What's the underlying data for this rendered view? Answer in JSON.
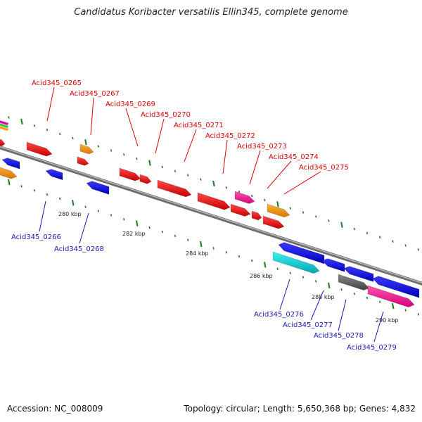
{
  "title": "Candidatus Koribacter versatilis Ellin345, complete genome",
  "footer": {
    "accession": "Accession: NC_008009",
    "summary": "Topology: circular; Length: 5,650,368 bp; Genes: 4,832"
  },
  "colors": {
    "top_label": "#e00000",
    "bottom_label": "#1a1ab4",
    "tick": "#1e7a1e",
    "backbone": "#8c8c8c"
  },
  "scale_labels": [
    {
      "text": "280 kbp",
      "pos": 280
    },
    {
      "text": "282 kbp",
      "pos": 282
    },
    {
      "text": "284 kbp",
      "pos": 284
    },
    {
      "text": "286 kbp",
      "pos": 286
    },
    {
      "text": "288 kbp",
      "pos": 288
    },
    {
      "text": "290 kbp",
      "pos": 290
    }
  ],
  "genes_top": [
    {
      "label": "Acid345_0265"
    },
    {
      "label": "Acid345_0267"
    },
    {
      "label": "Acid345_0269"
    },
    {
      "label": "Acid345_0270"
    },
    {
      "label": "Acid345_0271"
    },
    {
      "label": "Acid345_0272"
    },
    {
      "label": "Acid345_0273"
    },
    {
      "label": "Acid345_0274"
    },
    {
      "label": "Acid345_0275"
    }
  ],
  "genes_bottom": [
    {
      "label": "Acid345_0266"
    },
    {
      "label": "Acid345_0268"
    },
    {
      "label": "Acid345_0276"
    },
    {
      "label": "Acid345_0277"
    },
    {
      "label": "Acid345_0278"
    },
    {
      "label": "Acid345_0279"
    }
  ]
}
